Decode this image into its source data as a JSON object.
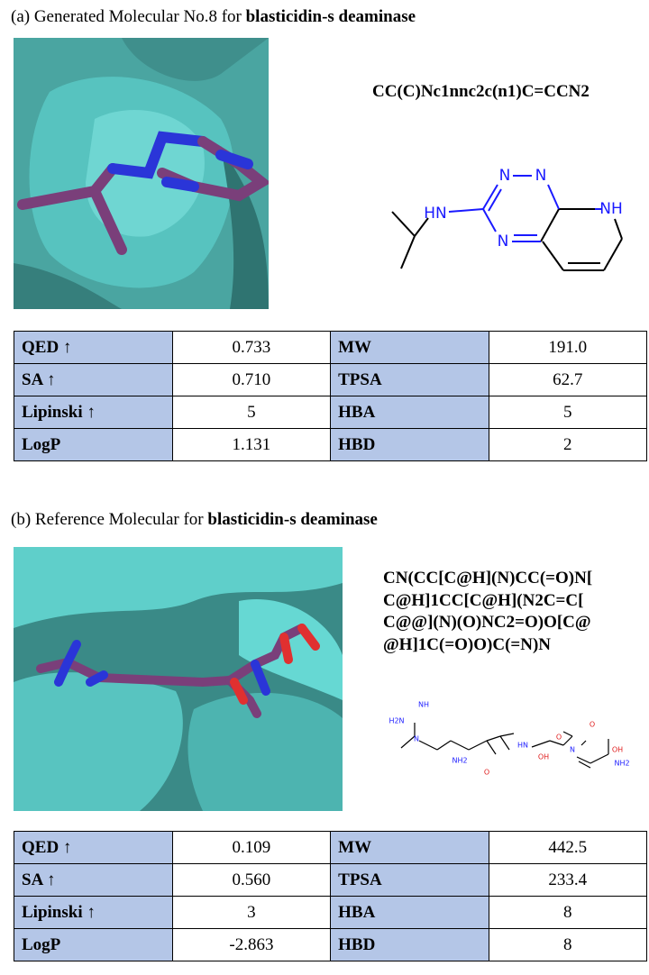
{
  "panels": [
    {
      "caption": {
        "prefix": "(a) Generated Molecular No.8 for",
        "target": "blasticidin-s deaminase"
      },
      "smiles": [
        "CC(C)Nc1nnc2c(n1)C=CCN2"
      ],
      "structure_labels": [
        "N",
        "N",
        "HN",
        "NH",
        "N"
      ],
      "table": {
        "rows": [
          [
            "QED ↑",
            "0.733",
            "MW",
            "191.0"
          ],
          [
            "SA ↑",
            "0.710",
            "TPSA",
            "62.7"
          ],
          [
            "Lipinski ↑",
            "5",
            "HBA",
            "5"
          ],
          [
            "LogP",
            "1.131",
            "HBD",
            "2"
          ]
        ]
      }
    },
    {
      "caption": {
        "prefix": "(b) Reference Molecular for",
        "target": "blasticidin-s deaminase"
      },
      "smiles": [
        "CN(CC[C@H](N)CC(=O)N[",
        "C@H]1CC[C@H](N2C=C[",
        "C@@](N)(O)NC2=O)O[C@",
        "@H]1C(=O)O)C(=N)N"
      ],
      "structure_labels": [
        "NH",
        "H2N",
        "N",
        "NH2",
        "O",
        "HN",
        "O",
        "OH",
        "N",
        "O",
        "OH",
        "NH2"
      ],
      "table": {
        "rows": [
          [
            "QED ↑",
            "0.109",
            "MW",
            "442.5"
          ],
          [
            "SA ↑",
            "0.560",
            "TPSA",
            "233.4"
          ],
          [
            "Lipinski ↑",
            "3",
            "HBA",
            "8"
          ],
          [
            "LogP",
            "-2.863",
            "HBD",
            "8"
          ]
        ]
      }
    }
  ]
}
